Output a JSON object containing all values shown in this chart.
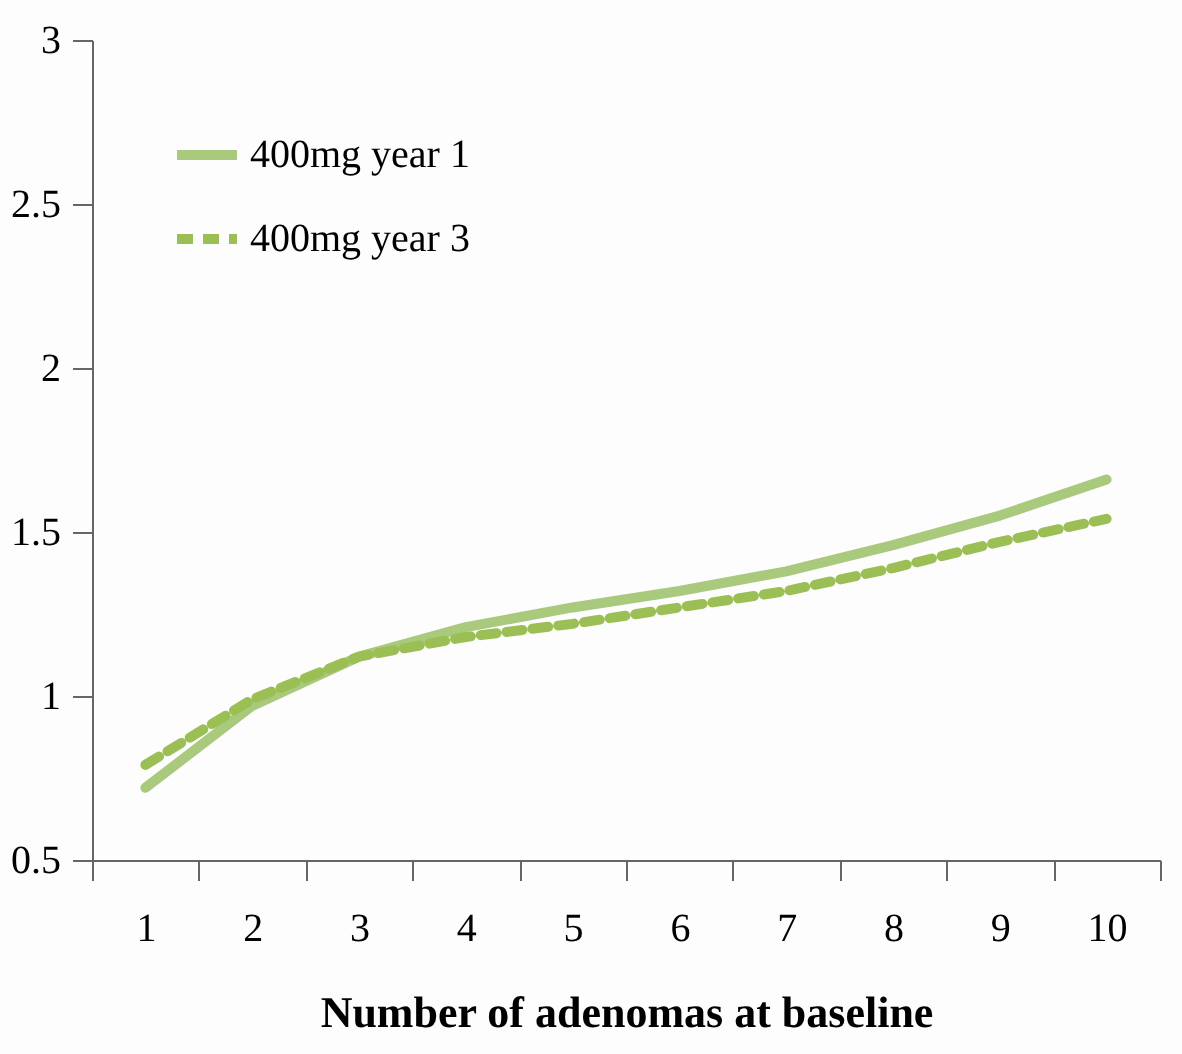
{
  "chart_data": {
    "type": "line",
    "xlabel": "Number of adenomas at baseline",
    "categories": [
      "1",
      "2",
      "3",
      "4",
      "5",
      "6",
      "7",
      "8",
      "9",
      "10"
    ],
    "series": [
      {
        "name": "400mg year 1",
        "color": "#a9c97d",
        "line_style": "solid",
        "values": [
          0.72,
          0.97,
          1.12,
          1.21,
          1.27,
          1.32,
          1.38,
          1.46,
          1.55,
          1.66
        ]
      },
      {
        "name": "400mg year 3",
        "color": "#9bbf55",
        "line_style": "dashed",
        "values": [
          0.79,
          0.99,
          1.12,
          1.18,
          1.22,
          1.27,
          1.32,
          1.39,
          1.47,
          1.54
        ]
      }
    ],
    "ylim": [
      0.5,
      3
    ],
    "yticks": [
      0.5,
      1,
      1.5,
      2,
      2.5,
      3
    ],
    "grid": false,
    "legend": "top left",
    "marker": "none"
  }
}
